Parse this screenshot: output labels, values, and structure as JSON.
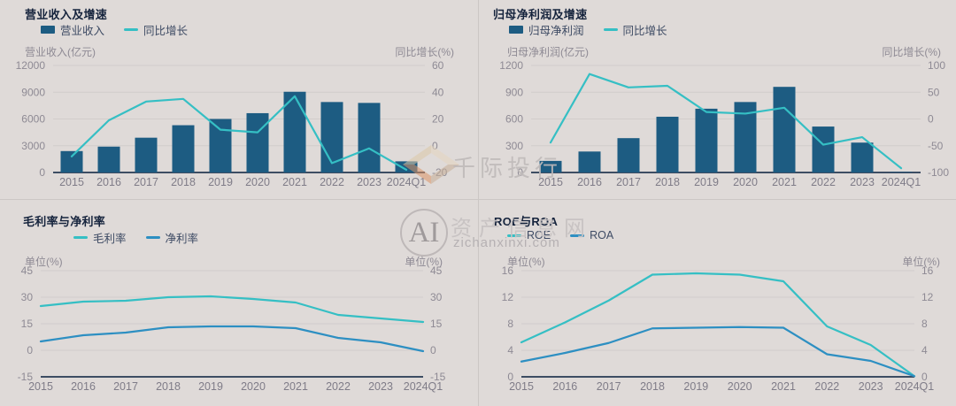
{
  "colors": {
    "background": "#dfdad8",
    "bar": "#1d5c82",
    "teal": "#35bfc4",
    "blue": "#2d8fc2",
    "axis_line": "#3d4d63",
    "gridline": "#d1cccb",
    "title_text": "#15233c",
    "legend_text": "#3e4b64",
    "axis_text": "#8e8a94",
    "xlabel_text": "#7f7c88",
    "divider": "#ccc7c5",
    "logo_orange": "#dd9466",
    "logo_tan": "#ddc8a8",
    "logo_tan_light": "#e6d6c0",
    "logo_gray": "#c6ad96"
  },
  "watermark": {
    "brand_text": "千际投行",
    "ai_text": "AI",
    "site_name": "资产信息网",
    "site_url": "zichanxinxi.com"
  },
  "chart_data": [
    {
      "type": "bar+line",
      "title": "营业收入及增速",
      "categories": [
        "2015",
        "2016",
        "2017",
        "2018",
        "2019",
        "2020",
        "2021",
        "2022",
        "2023",
        "2024Q1"
      ],
      "series": [
        {
          "name": "营业收入",
          "type": "bar",
          "axis": "left",
          "color": "bar",
          "values": [
            2400,
            2900,
            3900,
            5300,
            6000,
            6650,
            9050,
            7900,
            7800,
            1250
          ]
        },
        {
          "name": "同比增长",
          "type": "line",
          "axis": "right",
          "color": "teal",
          "values": [
            -8,
            19,
            33,
            35,
            12,
            10,
            37,
            -13,
            -2,
            -18
          ]
        }
      ],
      "left_axis": {
        "label": "营业收入(亿元)",
        "min": 0,
        "max": 12000,
        "ticks": [
          0,
          3000,
          6000,
          9000,
          12000
        ]
      },
      "right_axis": {
        "label": "同比增长(%)",
        "min": -20,
        "max": 60,
        "ticks": [
          -20,
          0,
          20,
          40,
          60
        ]
      },
      "grid": true,
      "legend_position": "top-left"
    },
    {
      "type": "bar+line",
      "title": "归母净利润及增速",
      "categories": [
        "2015",
        "2016",
        "2017",
        "2018",
        "2019",
        "2020",
        "2021",
        "2022",
        "2023",
        "2024Q1"
      ],
      "series": [
        {
          "name": "归母净利润",
          "type": "bar",
          "axis": "left",
          "color": "bar",
          "values": [
            130,
            235,
            385,
            625,
            715,
            790,
            960,
            515,
            335,
            5
          ]
        },
        {
          "name": "同比增长",
          "type": "line",
          "axis": "right",
          "color": "teal",
          "values": [
            -44,
            84,
            59,
            62,
            13,
            10,
            21,
            -48,
            -34,
            -92
          ]
        }
      ],
      "left_axis": {
        "label": "归母净利润(亿元)",
        "min": 0,
        "max": 1200,
        "ticks": [
          0,
          300,
          600,
          900,
          1200
        ]
      },
      "right_axis": {
        "label": "同比增长(%)",
        "min": -100,
        "max": 100,
        "ticks": [
          -100,
          -50,
          0,
          50,
          100
        ]
      },
      "grid": true,
      "legend_position": "top-left"
    },
    {
      "type": "line",
      "title": "毛利率与净利率",
      "categories": [
        "2015",
        "2016",
        "2017",
        "2018",
        "2019",
        "2020",
        "2021",
        "2022",
        "2023",
        "2024Q1"
      ],
      "series": [
        {
          "name": "毛利率",
          "type": "line",
          "axis": "left",
          "color": "teal",
          "values": [
            25,
            27.5,
            28,
            30,
            30.5,
            29,
            27,
            20,
            18,
            16
          ]
        },
        {
          "name": "净利率",
          "type": "line",
          "axis": "left",
          "color": "blue",
          "values": [
            5,
            8.5,
            10,
            13,
            13.5,
            13.5,
            12.5,
            7,
            4.5,
            -0.5
          ]
        }
      ],
      "left_axis": {
        "label": "单位(%)",
        "min": -15,
        "max": 45,
        "ticks": [
          -15,
          0,
          15,
          30,
          45
        ]
      },
      "right_axis": {
        "label": "单位(%)",
        "min": -15,
        "max": 45,
        "ticks": [
          -15,
          0,
          15,
          30,
          45
        ]
      },
      "grid": true,
      "legend_position": "top-left"
    },
    {
      "type": "line",
      "title": "ROE与ROA",
      "categories": [
        "2015",
        "2016",
        "2017",
        "2018",
        "2019",
        "2020",
        "2021",
        "2022",
        "2023",
        "2024Q1"
      ],
      "series": [
        {
          "name": "ROE",
          "type": "line",
          "axis": "left",
          "color": "teal",
          "values": [
            5.2,
            8.2,
            11.5,
            15.4,
            15.6,
            15.4,
            14.4,
            7.6,
            4.8,
            0.1
          ]
        },
        {
          "name": "ROA",
          "type": "line",
          "axis": "left",
          "color": "blue",
          "values": [
            2.3,
            3.6,
            5.1,
            7.3,
            7.4,
            7.5,
            7.4,
            3.4,
            2.4,
            0.1
          ]
        }
      ],
      "left_axis": {
        "label": "单位(%)",
        "min": 0,
        "max": 16,
        "ticks": [
          0,
          4,
          8,
          12,
          16
        ]
      },
      "right_axis": {
        "label": "单位(%)",
        "min": 0,
        "max": 16,
        "ticks": [
          0,
          4,
          8,
          12,
          16
        ]
      },
      "grid": true,
      "legend_position": "top-left"
    }
  ]
}
